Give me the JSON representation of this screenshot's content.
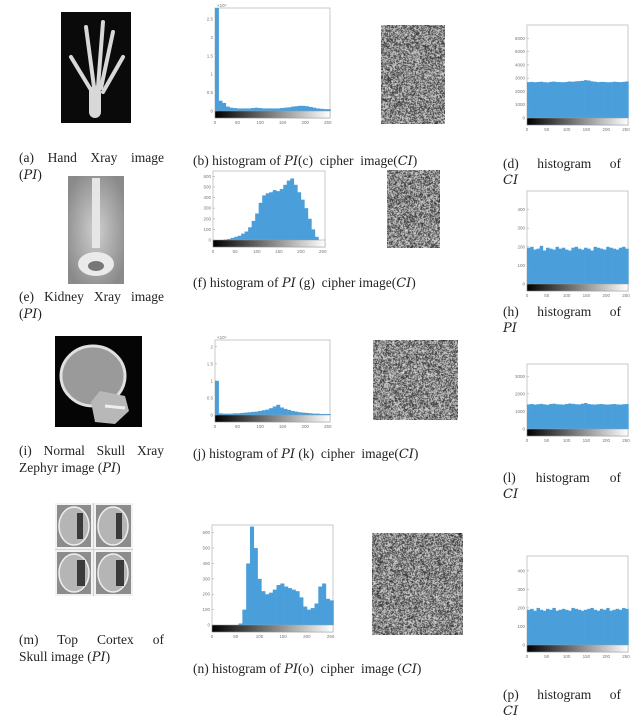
{
  "captions": {
    "a": {
      "pre": "(a) Hand Xray image",
      "open": "(",
      "math": "PI",
      "post": ")"
    },
    "b": {
      "pre": "(b) histogram of ",
      "math": "PI"
    },
    "c": {
      "pre": "(c)  cipher  image(",
      "math": "CI",
      "post": ")"
    },
    "d": {
      "pre": "(d)  histogram  of",
      "math": "CI"
    },
    "e": {
      "pre": "(e) Kidney Xray image",
      "open": "(",
      "math": "PI",
      "post": ")"
    },
    "f": {
      "pre": "(f) histogram of ",
      "math": "PI"
    },
    "g": {
      "pre": " (g)  cipher image(",
      "math": "CI",
      "post": ")"
    },
    "h": {
      "pre": "(h)  histogram  of",
      "math": "PI"
    },
    "i": {
      "pre": "(i) Normal Skull Xray",
      "pre2": "Zephyr image (",
      "math": "PI",
      "post": ")"
    },
    "j": {
      "pre": "(j) histogram of ",
      "math": "PI"
    },
    "k": {
      "pre": " (k)  cipher  image(",
      "math": "CI",
      "post": ")"
    },
    "l": {
      "pre": "(l)  histogram  of",
      "math": "CI"
    },
    "m": {
      "pre": "(m)  Top  Cortex  of",
      "pre2": "Skull image (",
      "math": "PI",
      "post": ")"
    },
    "n": {
      "pre": "(n) histogram of ",
      "math": "PI"
    },
    "o": {
      "pre": "(o)  cipher  image (",
      "math": "CI",
      "post": ")"
    },
    "p": {
      "pre": "(p)  histogram  of",
      "math": "CI"
    }
  },
  "colors": {
    "bar": "#4a9fdb",
    "axis": "#888888"
  },
  "chart_data": [
    {
      "id": "b",
      "type": "bar",
      "xlim": [
        0,
        255
      ],
      "ylim": [
        0,
        28000
      ],
      "xticks": [
        0,
        50,
        100,
        150,
        200,
        250
      ],
      "yticks": [
        0,
        5000,
        10000,
        15000,
        20000,
        25000
      ],
      "ytick_labels": [
        "0",
        "0.5",
        "1",
        "1.5",
        "2",
        "2.5"
      ],
      "exponent": "×10⁴",
      "values": [
        28000,
        2800,
        2200,
        1200,
        900,
        800,
        700,
        700,
        700,
        700,
        800,
        900,
        800,
        700,
        700,
        700,
        700,
        700,
        800,
        900,
        1000,
        1200,
        1300,
        1400,
        1400,
        1300,
        1100,
        900,
        700,
        600,
        500,
        500
      ]
    },
    {
      "id": "d",
      "type": "bar",
      "xlim": [
        0,
        255
      ],
      "ylim": [
        0,
        7000
      ],
      "xticks": [
        0,
        50,
        100,
        150,
        200,
        250
      ],
      "yticks": [
        0,
        1000,
        2000,
        3000,
        4000,
        5000,
        6000
      ],
      "ytick_labels": [
        "0",
        "1000",
        "2000",
        "3000",
        "4000",
        "5000",
        "6000"
      ],
      "values": [
        2700,
        2720,
        2690,
        2710,
        2730,
        2700,
        2680,
        2720,
        2740,
        2710,
        2700,
        2690,
        2720,
        2750,
        2730,
        2760,
        2780,
        2800,
        2850,
        2820,
        2760,
        2730,
        2700,
        2720,
        2710,
        2690,
        2700,
        2730,
        2710,
        2700,
        2720,
        2750
      ]
    },
    {
      "id": "f",
      "type": "bar",
      "xlim": [
        0,
        255
      ],
      "ylim": [
        0,
        650
      ],
      "xticks": [
        0,
        50,
        100,
        150,
        200,
        250
      ],
      "yticks": [
        0,
        100,
        200,
        300,
        400,
        500,
        600
      ],
      "ytick_labels": [
        "0",
        "100",
        "200",
        "300",
        "400",
        "500",
        "600"
      ],
      "values": [
        0,
        0,
        0,
        5,
        10,
        20,
        30,
        40,
        60,
        80,
        120,
        180,
        250,
        350,
        420,
        440,
        450,
        470,
        460,
        480,
        520,
        560,
        580,
        520,
        450,
        380,
        300,
        200,
        100,
        30,
        0,
        0
      ]
    },
    {
      "id": "h",
      "type": "bar",
      "xlim": [
        0,
        255
      ],
      "ylim": [
        0,
        500
      ],
      "xticks": [
        0,
        50,
        100,
        150,
        200,
        250
      ],
      "yticks": [
        0,
        100,
        200,
        300,
        400
      ],
      "ytick_labels": [
        "0",
        "100",
        "200",
        "300",
        "400"
      ],
      "values": [
        195,
        200,
        185,
        190,
        205,
        180,
        195,
        190,
        185,
        200,
        190,
        195,
        185,
        180,
        195,
        200,
        190,
        185,
        195,
        190,
        180,
        200,
        195,
        190,
        185,
        200,
        195,
        190,
        185,
        195,
        200,
        190
      ]
    },
    {
      "id": "j",
      "type": "bar",
      "xlim": [
        0,
        255
      ],
      "ylim": [
        0,
        22000
      ],
      "xticks": [
        0,
        50,
        100,
        150,
        200,
        250
      ],
      "yticks": [
        0,
        5000,
        10000,
        15000,
        20000
      ],
      "ytick_labels": [
        "0",
        "0.5",
        "1",
        "1.5",
        "2"
      ],
      "exponent": "×10⁴",
      "values": [
        10000,
        500,
        400,
        400,
        400,
        500,
        500,
        600,
        700,
        800,
        900,
        1000,
        1200,
        1400,
        1600,
        2000,
        2500,
        3000,
        2200,
        1800,
        1500,
        1200,
        1000,
        800,
        700,
        600,
        500,
        400,
        400,
        300,
        300,
        300
      ]
    },
    {
      "id": "l",
      "type": "bar",
      "xlim": [
        0,
        255
      ],
      "ylim": [
        0,
        3700
      ],
      "xticks": [
        0,
        50,
        100,
        150,
        200,
        250
      ],
      "yticks": [
        0,
        1000,
        2000,
        3000
      ],
      "ytick_labels": [
        "0",
        "1000",
        "2000",
        "3000"
      ],
      "values": [
        1400,
        1420,
        1390,
        1410,
        1430,
        1400,
        1380,
        1420,
        1440,
        1410,
        1400,
        1390,
        1420,
        1450,
        1430,
        1410,
        1400,
        1440,
        1480,
        1420,
        1400,
        1390,
        1410,
        1420,
        1400,
        1390,
        1410,
        1420,
        1400,
        1390,
        1410,
        1420
      ]
    },
    {
      "id": "n",
      "type": "bar",
      "xlim": [
        0,
        255
      ],
      "ylim": [
        0,
        650
      ],
      "xticks": [
        0,
        50,
        100,
        150,
        200,
        250
      ],
      "yticks": [
        0,
        100,
        200,
        300,
        400,
        500,
        600
      ],
      "ytick_labels": [
        "0",
        "100",
        "200",
        "300",
        "400",
        "500",
        "600"
      ],
      "values": [
        0,
        0,
        0,
        0,
        0,
        0,
        0,
        10,
        100,
        400,
        640,
        500,
        300,
        220,
        200,
        210,
        230,
        260,
        270,
        250,
        240,
        230,
        220,
        180,
        120,
        100,
        110,
        140,
        250,
        270,
        170,
        160
      ]
    },
    {
      "id": "p",
      "type": "bar",
      "xlim": [
        0,
        255
      ],
      "ylim": [
        0,
        480
      ],
      "xticks": [
        0,
        50,
        100,
        150,
        200,
        250
      ],
      "yticks": [
        0,
        100,
        200,
        300,
        400
      ],
      "ytick_labels": [
        "0",
        "100",
        "200",
        "300",
        "400"
      ],
      "values": [
        190,
        195,
        185,
        200,
        190,
        185,
        195,
        190,
        200,
        185,
        190,
        195,
        190,
        185,
        200,
        195,
        190,
        185,
        190,
        195,
        200,
        190,
        185,
        195,
        190,
        200,
        185,
        190,
        195,
        190,
        200,
        195
      ]
    }
  ]
}
